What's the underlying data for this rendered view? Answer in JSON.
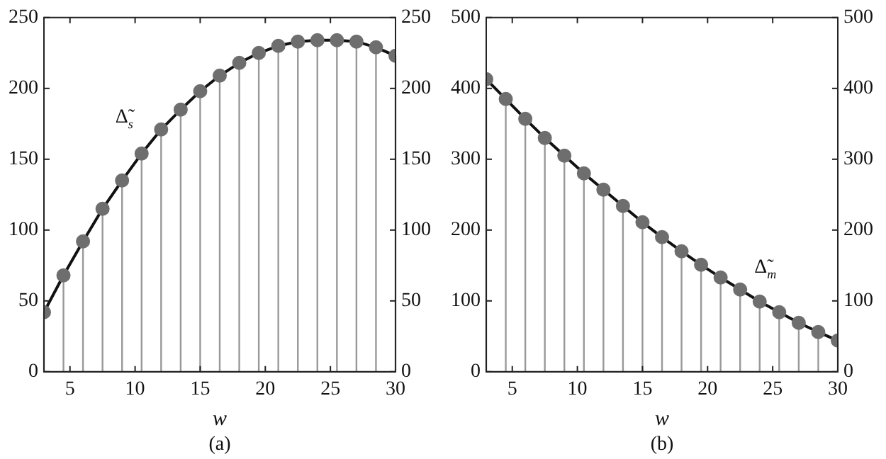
{
  "chart_data": [
    {
      "type": "lollipop",
      "title": "(a)",
      "xlabel": "w",
      "x": [
        3,
        4.5,
        6,
        7.5,
        9,
        10.5,
        12,
        13.5,
        15,
        16.5,
        18,
        19.5,
        21,
        22.5,
        24,
        25.5,
        27,
        28.5,
        30
      ],
      "series": [
        {
          "color": "#6e6e6e",
          "values": [
            42,
            68,
            92,
            115,
            135,
            154,
            171,
            185,
            198,
            209,
            218,
            225,
            230,
            233,
            234,
            234,
            233,
            229,
            223
          ]
        },
        {
          "type": "line",
          "name": "Δ̃$_{s}$",
          "color": "#111111",
          "marker": "none",
          "values": [
            42,
            68,
            92,
            115,
            135,
            154,
            171,
            185,
            198,
            209,
            218,
            225,
            230,
            233,
            234,
            234,
            233,
            229,
            223
          ]
        }
      ],
      "xlim": [
        3,
        30
      ],
      "xticks": [
        5,
        10,
        15,
        20,
        25,
        30
      ],
      "ylim": [
        0,
        250
      ],
      "yticks": [
        0,
        50,
        100,
        150,
        200,
        250
      ],
      "y2lim": [
        0,
        250
      ],
      "y2ticks": [
        0,
        50,
        100,
        150,
        200,
        250
      ],
      "legend": false,
      "marker": "circle",
      "line_style": "solid"
    },
    {
      "type": "lollipop",
      "title": "(b)",
      "xlabel": "w",
      "x": [
        3,
        4.5,
        6,
        7.5,
        9,
        10.5,
        12,
        13.5,
        15,
        16.5,
        18,
        19.5,
        21,
        22.5,
        24,
        25.5,
        27,
        28.5,
        30
      ],
      "series": [
        {
          "color": "#6e6e6e",
          "values": [
            413,
            385,
            357,
            330,
            305,
            280,
            257,
            234,
            211,
            190,
            170,
            151,
            133,
            116,
            99,
            84,
            69,
            56,
            44
          ]
        },
        {
          "type": "line",
          "name": "Δ̃$_{m}$",
          "color": "#111111",
          "marker": "none",
          "values": [
            413,
            385,
            357,
            330,
            305,
            280,
            257,
            234,
            211,
            190,
            170,
            151,
            133,
            116,
            99,
            84,
            69,
            56,
            44
          ]
        }
      ],
      "xlim": [
        3,
        30
      ],
      "xticks": [
        5,
        10,
        15,
        20,
        25,
        30
      ],
      "ylim": [
        0,
        500
      ],
      "yticks": [
        0,
        100,
        200,
        300,
        400,
        500
      ],
      "y2lim": [
        0,
        500
      ],
      "y2ticks": [
        0,
        100,
        200,
        300,
        400,
        500
      ],
      "legend": false,
      "marker": "circle",
      "line_style": "solid"
    }
  ]
}
